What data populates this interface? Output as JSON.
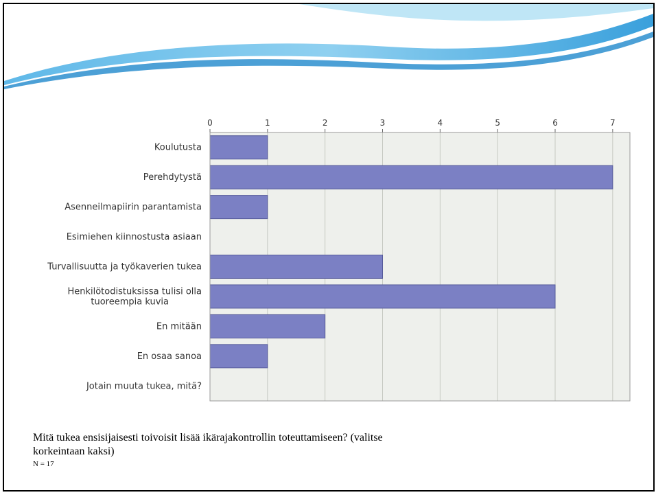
{
  "chart_data": {
    "type": "bar",
    "orientation": "horizontal",
    "categories": [
      "Koulutusta",
      "Perehdytystä",
      "Asenneilmapiirin parantamista",
      "Esimiehen kiinnostusta asiaan",
      "Turvallisuutta ja työkaverien tukea",
      "Henkilötodistuksissa tulisi olla tuoreempia kuvia",
      "En mitään",
      "En osaa sanoa",
      "Jotain muuta tukea, mitä?"
    ],
    "category_lines": [
      [
        "Koulutusta"
      ],
      [
        "Perehdytystä"
      ],
      [
        "Asenneilmapiirin parantamista"
      ],
      [
        "Esimiehen kiinnostusta asiaan"
      ],
      [
        "Turvallisuutta ja työkaverien tukea"
      ],
      [
        "Henkilötodistuksissa tulisi olla",
        "tuoreempia kuvia"
      ],
      [
        "En mitään"
      ],
      [
        "En osaa sanoa"
      ],
      [
        "Jotain muuta tukea, mitä?"
      ]
    ],
    "values": [
      1,
      7,
      1,
      0,
      3,
      6,
      2,
      1,
      0
    ],
    "xlim": [
      0,
      7.3
    ],
    "ticks": [
      0,
      1,
      2,
      3,
      4,
      5,
      6,
      7
    ],
    "grid": true,
    "bar_color": "#7b80c4",
    "plot_bg": "#eef0ec",
    "xlabel": "",
    "ylabel": ""
  },
  "caption": {
    "question_line1": "Mitä tukea ensisijaisesti toivoisit lisää ikärajakontrollin toteuttamiseen? (valitse",
    "question_line2": "korkeintaan kaksi)",
    "n": "N = 17"
  }
}
